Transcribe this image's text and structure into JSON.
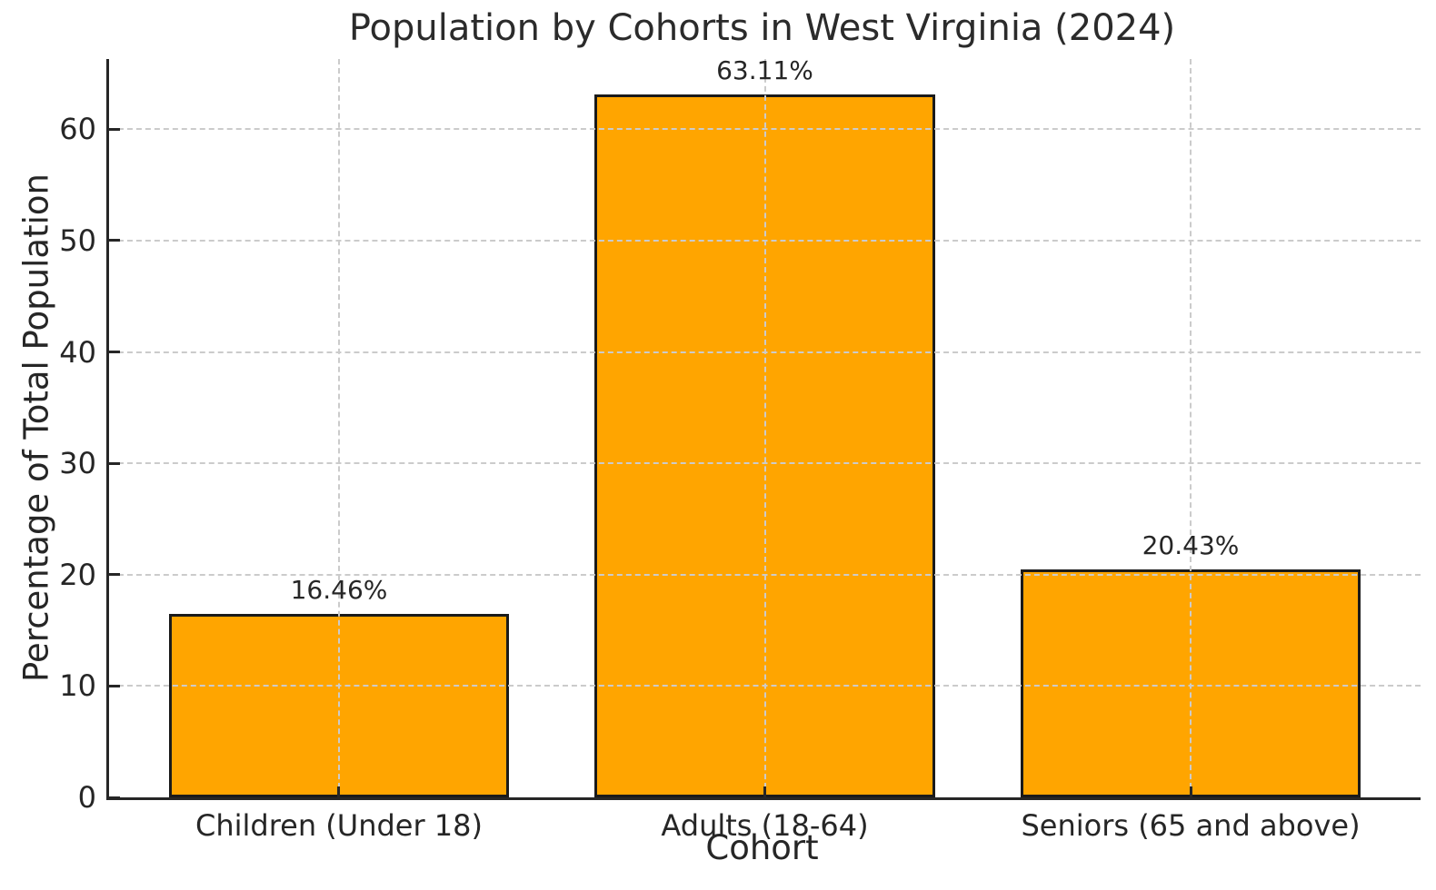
{
  "chart_data": {
    "type": "bar",
    "title": "Population by Cohorts in West Virginia (2024)",
    "xlabel": "Cohort",
    "ylabel": "Percentage of Total Population",
    "categories": [
      "Children (Under 18)",
      "Adults (18-64)",
      "Seniors (65 and above)"
    ],
    "values": [
      16.46,
      63.11,
      20.43
    ],
    "value_labels": [
      "16.46%",
      "63.11%",
      "20.43%"
    ],
    "ylim": [
      0,
      66.3
    ],
    "yticks": [
      0,
      10,
      20,
      30,
      40,
      50,
      60
    ],
    "legend": "none",
    "grid": {
      "style": "dashed",
      "horizontal": true,
      "vertical": true,
      "above_bars": true,
      "color": "#cbcbcb"
    },
    "bar_color": "#FFA500",
    "bar_edge_color": "#1a1a1a",
    "bar_width_fraction": 0.8,
    "x_margin_fraction": 0.05
  }
}
